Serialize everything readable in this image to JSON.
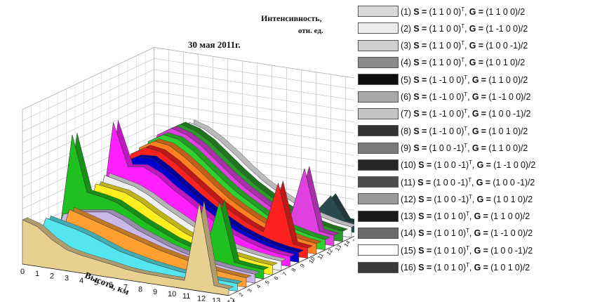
{
  "chart_data": {
    "type": "area",
    "title": "30 мая 2011г.",
    "zlabel_line1": "Интенсивность,",
    "zlabel_line2": "отн. ед.",
    "xlabel": "Высота, км",
    "x": [
      0,
      1,
      2,
      3,
      4,
      5,
      6,
      7,
      8,
      9,
      10,
      11,
      12,
      13,
      14
    ],
    "z_ticks": [
      0,
      500,
      1000,
      1500,
      2000,
      2500,
      3000,
      3500,
      4000,
      4500,
      5000,
      5500,
      6000,
      6500,
      7000
    ],
    "zlim": [
      0,
      7000
    ],
    "depth_ticks": [
      1,
      2,
      3,
      4,
      5,
      6,
      7,
      8,
      9,
      10,
      11,
      12,
      13,
      14,
      15,
      16
    ],
    "series": [
      {
        "name": "(1)",
        "color": "#e8d090",
        "values": [
          2000,
          1800,
          1300,
          950,
          800,
          700,
          600,
          480,
          420,
          400,
          380,
          380,
          4000,
          350,
          300
        ]
      },
      {
        "name": "(2)",
        "color": "#55e5ee",
        "values": [
          0,
          2000,
          1850,
          1700,
          1500,
          1250,
          1000,
          850,
          700,
          600,
          500,
          450,
          400,
          380,
          350
        ]
      },
      {
        "name": "(3)",
        "color": "#ffa030",
        "values": [
          0,
          0,
          2300,
          2100,
          1900,
          1700,
          1500,
          1300,
          1100,
          950,
          800,
          650,
          550,
          480,
          420
        ]
      },
      {
        "name": "(4)",
        "color": "#ccb8e8",
        "values": [
          0,
          1800,
          2000,
          2100,
          2200,
          1950,
          1600,
          1350,
          1100,
          900,
          750,
          620,
          520,
          450,
          400
        ]
      },
      {
        "name": "(5)",
        "color": "#20c020",
        "values": [
          0,
          5200,
          2700,
          2600,
          2450,
          2100,
          1750,
          1450,
          1150,
          950,
          780,
          3200,
          550,
          470,
          420
        ]
      },
      {
        "name": "(6)",
        "color": "#ffee20",
        "values": [
          0,
          0,
          2900,
          2800,
          2700,
          2400,
          2000,
          1650,
          1300,
          1050,
          850,
          680,
          580,
          480,
          430
        ]
      },
      {
        "name": "(7)",
        "color": "#f0f0f0",
        "values": [
          0,
          0,
          3100,
          2950,
          2800,
          2500,
          2100,
          1750,
          1400,
          1100,
          880,
          700,
          580,
          480,
          430
        ]
      },
      {
        "name": "(8)",
        "color": "#ff20ff",
        "values": [
          0,
          0,
          5300,
          3400,
          3500,
          3200,
          2700,
          2300,
          1850,
          1450,
          1100,
          850,
          650,
          520,
          450
        ]
      },
      {
        "name": "(9)",
        "color": "#0000cc",
        "values": [
          0,
          0,
          3300,
          3650,
          3700,
          3300,
          2800,
          2300,
          1850,
          1450,
          1100,
          850,
          650,
          520,
          450
        ]
      },
      {
        "name": "(10)",
        "color": "#ff2020",
        "values": [
          0,
          0,
          3500,
          3900,
          3800,
          3400,
          2900,
          2400,
          1900,
          1500,
          1150,
          880,
          3200,
          540,
          460
        ]
      },
      {
        "name": "(11)",
        "color": "#ff8020",
        "values": [
          0,
          0,
          3600,
          4000,
          3900,
          3500,
          3000,
          2450,
          1950,
          1550,
          1200,
          900,
          720,
          560,
          470
        ]
      },
      {
        "name": "(12)",
        "color": "#30d030",
        "values": [
          0,
          0,
          3700,
          4100,
          4000,
          3600,
          3050,
          2500,
          2000,
          1600,
          1200,
          900,
          720,
          560,
          470
        ]
      },
      {
        "name": "(13)",
        "color": "#e040e0",
        "values": [
          0,
          0,
          3800,
          4200,
          4000,
          3600,
          3050,
          2500,
          2000,
          1600,
          1200,
          900,
          3300,
          560,
          470
        ]
      },
      {
        "name": "(14)",
        "color": "#2a9a2a",
        "values": [
          0,
          0,
          3800,
          4200,
          4000,
          3600,
          3050,
          2500,
          2000,
          1600,
          1200,
          900,
          720,
          560,
          470
        ]
      },
      {
        "name": "(15)",
        "color": "#f8f8f8",
        "values": [
          0,
          0,
          0,
          4100,
          3900,
          3500,
          3000,
          2450,
          1950,
          1550,
          1200,
          900,
          720,
          560,
          470
        ]
      },
      {
        "name": "(16)",
        "color": "#2a4a50",
        "values": [
          0,
          0,
          0,
          3000,
          2700,
          2400,
          2000,
          1650,
          1300,
          1050,
          850,
          680,
          1500,
          480,
          430
        ]
      }
    ]
  },
  "legend": [
    {
      "num": "(1)",
      "s": "(1 1 0 0)",
      "g": "(1 1 0 0)/2",
      "color": "#d9d9d9"
    },
    {
      "num": "(2)",
      "s": "(1 1 0 0)",
      "g": "(1 -1 0 0)/2",
      "color": "#ececec"
    },
    {
      "num": "(3)",
      "s": "(1 1 0 0)",
      "g": "(1 0 0 -1)/2",
      "color": "#cfcfcf"
    },
    {
      "num": "(4)",
      "s": "(1 1 0 0)",
      "g": "(1 0 1 0)/2",
      "color": "#8a8a8a"
    },
    {
      "num": "(5)",
      "s": "(1 -1 0 0)",
      "g": "(1 1 0 0)/2",
      "color": "#0d0d0d"
    },
    {
      "num": "(6)",
      "s": "(1 -1 0 0)",
      "g": "(1 -1 0 0)/2",
      "color": "#a8a8a8"
    },
    {
      "num": "(7)",
      "s": "(1 -1 0 0)",
      "g": "(1 0 0 -1)/2",
      "color": "#c4c4c4"
    },
    {
      "num": "(8)",
      "s": "(1 -1 0 0)",
      "g": "(1 0 1 0)/2",
      "color": "#333333"
    },
    {
      "num": "(9)",
      "s": "(1 0 0 -1)",
      "g": "(1 1 0 0)/2",
      "color": "#7a7a7a"
    },
    {
      "num": "(10)",
      "s": "(1 0 0 -1)",
      "g": "(1 -1 0 0)/2",
      "color": "#262626"
    },
    {
      "num": "(11)",
      "s": "(1 0 0 -1)",
      "g": "(1 0 0 -1)/2",
      "color": "#4d4d4d"
    },
    {
      "num": "(12)",
      "s": "(1 0 0 -1)",
      "g": "(1 0 1 0)/2",
      "color": "#9a9a9a"
    },
    {
      "num": "(13)",
      "s": "(1 0 1 0)",
      "g": "(1 1 0 0)/2",
      "color": "#1a1a1a"
    },
    {
      "num": "(14)",
      "s": "(1 0 1 0)",
      "g": "(1 -1 0 0)/2",
      "color": "#6a6a6a"
    },
    {
      "num": "(15)",
      "s": "(1 0 1 0)",
      "g": "(1 0 0 -1)/2",
      "color": "#ffffff"
    },
    {
      "num": "(16)",
      "s": "(1 0 1 0)",
      "g": "(1 0 1 0)/2",
      "color": "#3a3a3a"
    }
  ],
  "legend_text": {
    "s_sym": "S =",
    "g_sym": "G =",
    "transpose": "T",
    "sep": ","
  }
}
